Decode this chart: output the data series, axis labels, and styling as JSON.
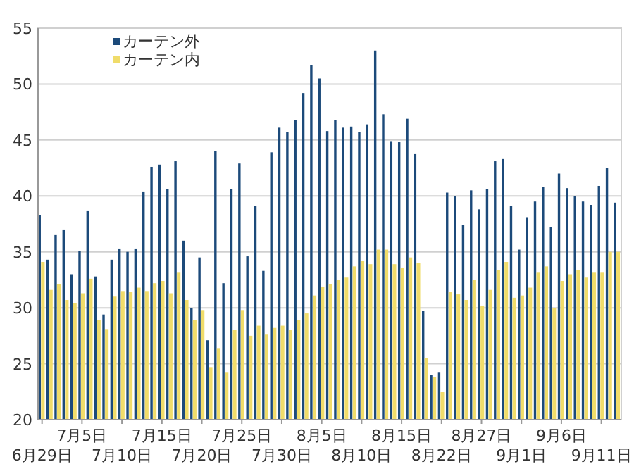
{
  "chart_data": {
    "type": "bar",
    "categories": [
      "6月29日",
      null,
      null,
      null,
      null,
      "7月5日",
      null,
      null,
      null,
      null,
      "7月10日",
      null,
      null,
      null,
      null,
      "7月15日",
      null,
      null,
      null,
      null,
      "7月20日",
      null,
      null,
      null,
      null,
      "7月25日",
      null,
      null,
      null,
      null,
      "7月30日",
      null,
      null,
      null,
      null,
      "8月5日",
      null,
      null,
      null,
      null,
      "8月10日",
      null,
      null,
      null,
      null,
      "8月15日",
      null,
      null,
      null,
      null,
      "8月22日",
      null,
      null,
      null,
      null,
      "8月27日",
      null,
      null,
      null,
      null,
      "9月1日",
      null,
      null,
      null,
      null,
      "9月6日",
      null,
      null,
      null,
      null,
      "9月11日",
      null,
      null
    ],
    "series": [
      {
        "name": "カーテン外",
        "color": "#1c4a7a",
        "values": [
          38.3,
          34.3,
          36.5,
          37.0,
          33.0,
          35.1,
          38.7,
          32.8,
          29.4,
          34.3,
          35.3,
          35.0,
          35.3,
          40.4,
          42.6,
          42.8,
          40.6,
          43.1,
          36.0,
          30.0,
          34.5,
          27.1,
          44.0,
          32.2,
          40.6,
          42.9,
          34.6,
          39.1,
          33.3,
          43.9,
          46.1,
          45.7,
          46.8,
          49.2,
          51.7,
          50.5,
          45.8,
          46.8,
          46.1,
          46.2,
          45.7,
          46.4,
          53.0,
          47.3,
          44.9,
          44.8,
          46.9,
          43.8,
          29.7,
          24.0,
          24.2,
          40.3,
          40.0,
          37.4,
          40.5,
          38.8,
          40.6,
          43.1,
          43.3,
          39.1,
          35.2,
          38.1,
          39.5,
          40.8,
          37.2,
          42.0,
          40.7,
          40.0,
          39.5,
          39.2,
          40.9,
          42.5,
          39.4
        ]
      },
      {
        "name": "カーテン内",
        "color": "#f0dc6a",
        "values": [
          34.1,
          31.6,
          32.1,
          30.7,
          30.4,
          31.3,
          32.6,
          28.9,
          28.1,
          31.0,
          31.5,
          31.4,
          31.8,
          31.5,
          32.2,
          32.4,
          31.3,
          33.2,
          30.7,
          28.9,
          29.8,
          24.7,
          26.4,
          24.2,
          28.0,
          29.8,
          27.5,
          28.4,
          27.6,
          28.2,
          28.4,
          28.0,
          28.9,
          29.5,
          31.1,
          31.9,
          32.1,
          32.5,
          32.7,
          33.7,
          34.2,
          33.9,
          35.2,
          35.2,
          33.9,
          33.6,
          34.5,
          34.0,
          25.5,
          23.8,
          22.5,
          31.4,
          31.2,
          30.7,
          32.5,
          30.2,
          31.6,
          33.4,
          34.1,
          30.9,
          31.1,
          31.8,
          33.2,
          33.7,
          30.0,
          32.4,
          33.0,
          33.4,
          32.7,
          33.2,
          33.2,
          35.0,
          35.0
        ]
      }
    ],
    "ylim": [
      20,
      55
    ],
    "yticks": [
      20,
      25,
      30,
      35,
      40,
      45,
      50,
      55
    ],
    "grid": "y",
    "legend": "top left"
  }
}
